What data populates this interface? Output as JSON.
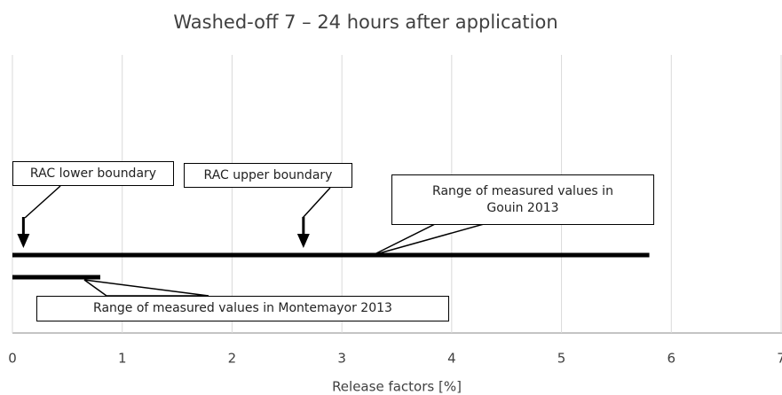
{
  "chart_data": {
    "type": "range",
    "title": "Washed-off 7 – 24 hours after application",
    "xlabel": "Release factors [%]",
    "xlim": [
      0,
      7
    ],
    "xticks": [
      0,
      1,
      2,
      3,
      4,
      5,
      6,
      7
    ],
    "grid": true,
    "color": "#000000",
    "ranges": [
      {
        "name": "Range of measured values in Gouin 2013",
        "values": [
          0,
          5.8
        ]
      },
      {
        "name": "Range of measured values in Montemayor 2013",
        "values": [
          0,
          0.8
        ]
      }
    ],
    "markers": [
      {
        "name": "RAC lower boundary",
        "value": 0.1
      },
      {
        "name": "RAC upper boundary",
        "value": 2.65
      }
    ]
  }
}
